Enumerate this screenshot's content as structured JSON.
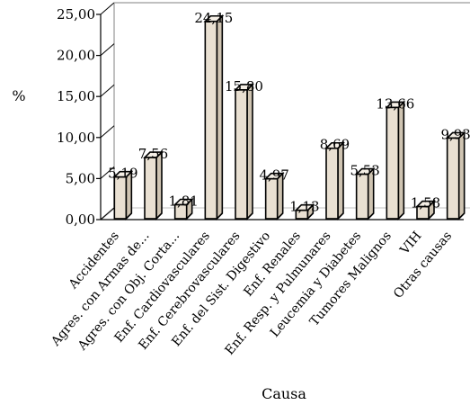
{
  "chart_data": {
    "type": "bar",
    "style": "3d-column",
    "title": "",
    "xlabel": "Causa",
    "ylabel": "%",
    "ylim": [
      0,
      25
    ],
    "yticks": [
      "0,00",
      "5,00",
      "10,00",
      "15,00",
      "20,00",
      "25,00"
    ],
    "grid": false,
    "legend": "none",
    "categories": [
      "Accidentes",
      "Agres. con Armas de...",
      "Agres. con Obj. Corta...",
      "Enf. Cardiovasculares",
      "Enf. Cerebrovasculares",
      "Enf. del Sist. Digestivo",
      "Enf. Renales",
      "Enf. Resp. y Pulmunares",
      "Leucemia y Diabetes",
      "Tumores Malignos",
      "VIH",
      "Otras causas"
    ],
    "values": [
      5.19,
      7.56,
      1.81,
      24.15,
      15.8,
      4.97,
      1.13,
      8.69,
      5.53,
      13.66,
      1.58,
      9.93
    ],
    "data_labels": [
      "5,19",
      "7,56",
      "1,81",
      "24,15",
      "15,80",
      "4,97",
      "1,13",
      "8,69",
      "5,53",
      "13,66",
      "1,58",
      "9,93"
    ],
    "colors": {
      "bar_front": "#e9e0d2",
      "bar_side": "#cfc4b2",
      "bar_top": "#f5efe6",
      "outline": "#000000",
      "wall": "#c0c0c0"
    }
  }
}
